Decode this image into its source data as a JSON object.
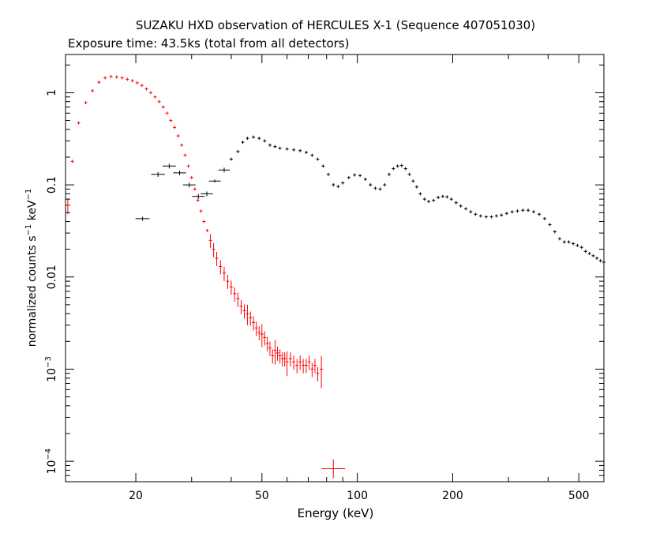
{
  "chart_data": {
    "type": "scatter",
    "title": "SUZAKU HXD observation of HERCULES X-1 (Sequence 407051030)",
    "subtitle": "Exposure time: 43.5ks (total from all detectors)",
    "xlabel": "Energy (keV)",
    "ylabel": {
      "main": "normalized counts s",
      "sup1": "−1",
      "mid": " keV",
      "sup2": "−1"
    },
    "xscale": "log",
    "yscale": "log",
    "xlim": [
      12,
      600
    ],
    "ylim": [
      6e-05,
      2.6
    ],
    "grid": false,
    "x_ticks": [
      {
        "value": 20,
        "label": "20"
      },
      {
        "value": 50,
        "label": "50"
      },
      {
        "value": 100,
        "label": "100"
      },
      {
        "value": 200,
        "label": "200"
      },
      {
        "value": 500,
        "label": "500"
      }
    ],
    "y_ticks": [
      {
        "value": 1,
        "label": "1",
        "sup": ""
      },
      {
        "value": 0.1,
        "label": "0.1",
        "sup": ""
      },
      {
        "value": 0.01,
        "label": "0.01",
        "sup": ""
      },
      {
        "value": 0.001,
        "label": "10",
        "sup": "−3"
      },
      {
        "value": 0.0001,
        "label": "10",
        "sup": "−4"
      }
    ],
    "series": [
      {
        "color": "#ff0000",
        "points": [
          [
            12.2,
            0.06
          ],
          [
            12.6,
            0.18
          ],
          [
            13.2,
            0.47
          ],
          [
            13.9,
            0.78
          ],
          [
            14.6,
            1.05
          ],
          [
            15.3,
            1.3
          ],
          [
            16.0,
            1.45
          ],
          [
            16.7,
            1.5
          ],
          [
            17.4,
            1.48
          ],
          [
            18.1,
            1.45
          ],
          [
            18.8,
            1.4
          ],
          [
            19.5,
            1.35
          ],
          [
            20.2,
            1.28
          ],
          [
            20.9,
            1.2
          ],
          [
            21.6,
            1.1
          ],
          [
            22.3,
            1.0
          ],
          [
            23.0,
            0.9
          ],
          [
            23.7,
            0.8
          ],
          [
            24.4,
            0.7
          ],
          [
            25.1,
            0.6
          ],
          [
            25.8,
            0.5
          ],
          [
            26.5,
            0.42
          ],
          [
            27.2,
            0.34
          ],
          [
            27.9,
            0.27
          ],
          [
            28.6,
            0.21
          ],
          [
            29.3,
            0.16
          ],
          [
            30.0,
            0.12
          ],
          [
            30.7,
            0.09
          ],
          [
            31.4,
            0.068
          ],
          [
            32.1,
            0.052
          ],
          [
            32.8,
            0.04
          ],
          [
            33.6,
            0.032
          ],
          [
            34.4,
            0.025
          ],
          [
            35.2,
            0.02
          ],
          [
            36.0,
            0.016
          ],
          [
            37.0,
            0.013
          ],
          [
            38.0,
            0.011
          ],
          [
            39.0,
            0.009
          ],
          [
            40.0,
            0.0078
          ],
          [
            41.0,
            0.0066
          ],
          [
            42.0,
            0.0058
          ],
          [
            43.0,
            0.0048
          ],
          [
            44.0,
            0.0043
          ],
          [
            45.0,
            0.004
          ],
          [
            46.0,
            0.0036
          ],
          [
            47.0,
            0.0032
          ],
          [
            48.0,
            0.0028
          ],
          [
            49.0,
            0.0025
          ],
          [
            50.0,
            0.0024
          ],
          [
            51.0,
            0.0022
          ],
          [
            52.0,
            0.0019
          ],
          [
            53.0,
            0.0017
          ],
          [
            54.0,
            0.0014
          ],
          [
            55.0,
            0.0016
          ],
          [
            56.0,
            0.0015
          ],
          [
            57.0,
            0.0014
          ],
          [
            58.0,
            0.0013
          ],
          [
            59.0,
            0.0013
          ],
          [
            60.0,
            0.0012
          ],
          [
            61.5,
            0.0013
          ],
          [
            63.0,
            0.0012
          ],
          [
            64.5,
            0.0011
          ],
          [
            66.0,
            0.0012
          ],
          [
            67.5,
            0.0011
          ],
          [
            69.0,
            0.0011
          ],
          [
            70.5,
            0.0012
          ],
          [
            72.0,
            0.001
          ],
          [
            73.5,
            0.0011
          ],
          [
            75.0,
            0.0009
          ],
          [
            77.0,
            0.001
          ],
          [
            84.0,
            8.3e-05
          ]
        ],
        "errs": [
          [
            12.2,
            0.2
          ],
          [
            84.0,
            3.5
          ],
          [
            45.0,
            0.25
          ],
          [
            50.0,
            0.28
          ],
          [
            55.0,
            0.3
          ],
          [
            60.0,
            0.3
          ],
          [
            65.0,
            0.33
          ],
          [
            70.0,
            0.35
          ],
          [
            77.0,
            0.38
          ]
        ]
      },
      {
        "color": "#000000",
        "points": [
          [
            21.0,
            0.043
          ],
          [
            23.5,
            0.13
          ],
          [
            25.5,
            0.16
          ],
          [
            27.5,
            0.135
          ],
          [
            29.5,
            0.1
          ],
          [
            31.5,
            0.075
          ],
          [
            33.5,
            0.08
          ],
          [
            35.5,
            0.11
          ],
          [
            38.0,
            0.145
          ],
          [
            40.0,
            0.19
          ],
          [
            42.0,
            0.23
          ],
          [
            43.5,
            0.29
          ],
          [
            45.0,
            0.32
          ],
          [
            47.0,
            0.33
          ],
          [
            49.0,
            0.32
          ],
          [
            51.0,
            0.3
          ],
          [
            53.0,
            0.27
          ],
          [
            55.0,
            0.26
          ],
          [
            57.0,
            0.25
          ],
          [
            60.0,
            0.245
          ],
          [
            63.0,
            0.24
          ],
          [
            66.0,
            0.235
          ],
          [
            69.0,
            0.225
          ],
          [
            72.0,
            0.21
          ],
          [
            75.0,
            0.19
          ],
          [
            78.0,
            0.16
          ],
          [
            81.0,
            0.13
          ],
          [
            84.0,
            0.1
          ],
          [
            87.0,
            0.096
          ],
          [
            90.0,
            0.105
          ],
          [
            94.0,
            0.12
          ],
          [
            98.0,
            0.128
          ],
          [
            102.0,
            0.126
          ],
          [
            106.0,
            0.115
          ],
          [
            110.0,
            0.1
          ],
          [
            114.0,
            0.092
          ],
          [
            118.0,
            0.09
          ],
          [
            122.0,
            0.1
          ],
          [
            126.0,
            0.13
          ],
          [
            130.0,
            0.15
          ],
          [
            134.0,
            0.16
          ],
          [
            138.0,
            0.162
          ],
          [
            142.0,
            0.15
          ],
          [
            146.0,
            0.13
          ],
          [
            150.0,
            0.11
          ],
          [
            154.0,
            0.095
          ],
          [
            158.0,
            0.08
          ],
          [
            163.0,
            0.07
          ],
          [
            168.0,
            0.066
          ],
          [
            174.0,
            0.068
          ],
          [
            180.0,
            0.073
          ],
          [
            186.0,
            0.075
          ],
          [
            192.0,
            0.074
          ],
          [
            198.0,
            0.07
          ],
          [
            205.0,
            0.064
          ],
          [
            212.0,
            0.059
          ],
          [
            220.0,
            0.055
          ],
          [
            228.0,
            0.051
          ],
          [
            236.0,
            0.048
          ],
          [
            245.0,
            0.046
          ],
          [
            255.0,
            0.045
          ],
          [
            265.0,
            0.045
          ],
          [
            275.0,
            0.046
          ],
          [
            285.0,
            0.047
          ],
          [
            296.0,
            0.049
          ],
          [
            308.0,
            0.051
          ],
          [
            320.0,
            0.052
          ],
          [
            333.0,
            0.053
          ],
          [
            346.0,
            0.053
          ],
          [
            360.0,
            0.051
          ],
          [
            375.0,
            0.048
          ],
          [
            390.0,
            0.043
          ],
          [
            405.0,
            0.037
          ],
          [
            420.0,
            0.031
          ],
          [
            435.0,
            0.026
          ],
          [
            450.0,
            0.024
          ],
          [
            465.0,
            0.024
          ],
          [
            480.0,
            0.023
          ],
          [
            495.0,
            0.022
          ],
          [
            510.0,
            0.021
          ],
          [
            525.0,
            0.019
          ],
          [
            540.0,
            0.018
          ],
          [
            555.0,
            0.017
          ],
          [
            570.0,
            0.016
          ],
          [
            585.0,
            0.015
          ],
          [
            600.0,
            0.0145
          ]
        ],
        "errs": [
          [
            21.0,
            0.05
          ],
          [
            23.5,
            0.06
          ],
          [
            25.5,
            0.06
          ],
          [
            27.5,
            0.06
          ],
          [
            29.5,
            0.06
          ],
          [
            31.5,
            0.06
          ],
          [
            33.5,
            0.06
          ],
          [
            38.0,
            0.06
          ]
        ]
      }
    ]
  }
}
